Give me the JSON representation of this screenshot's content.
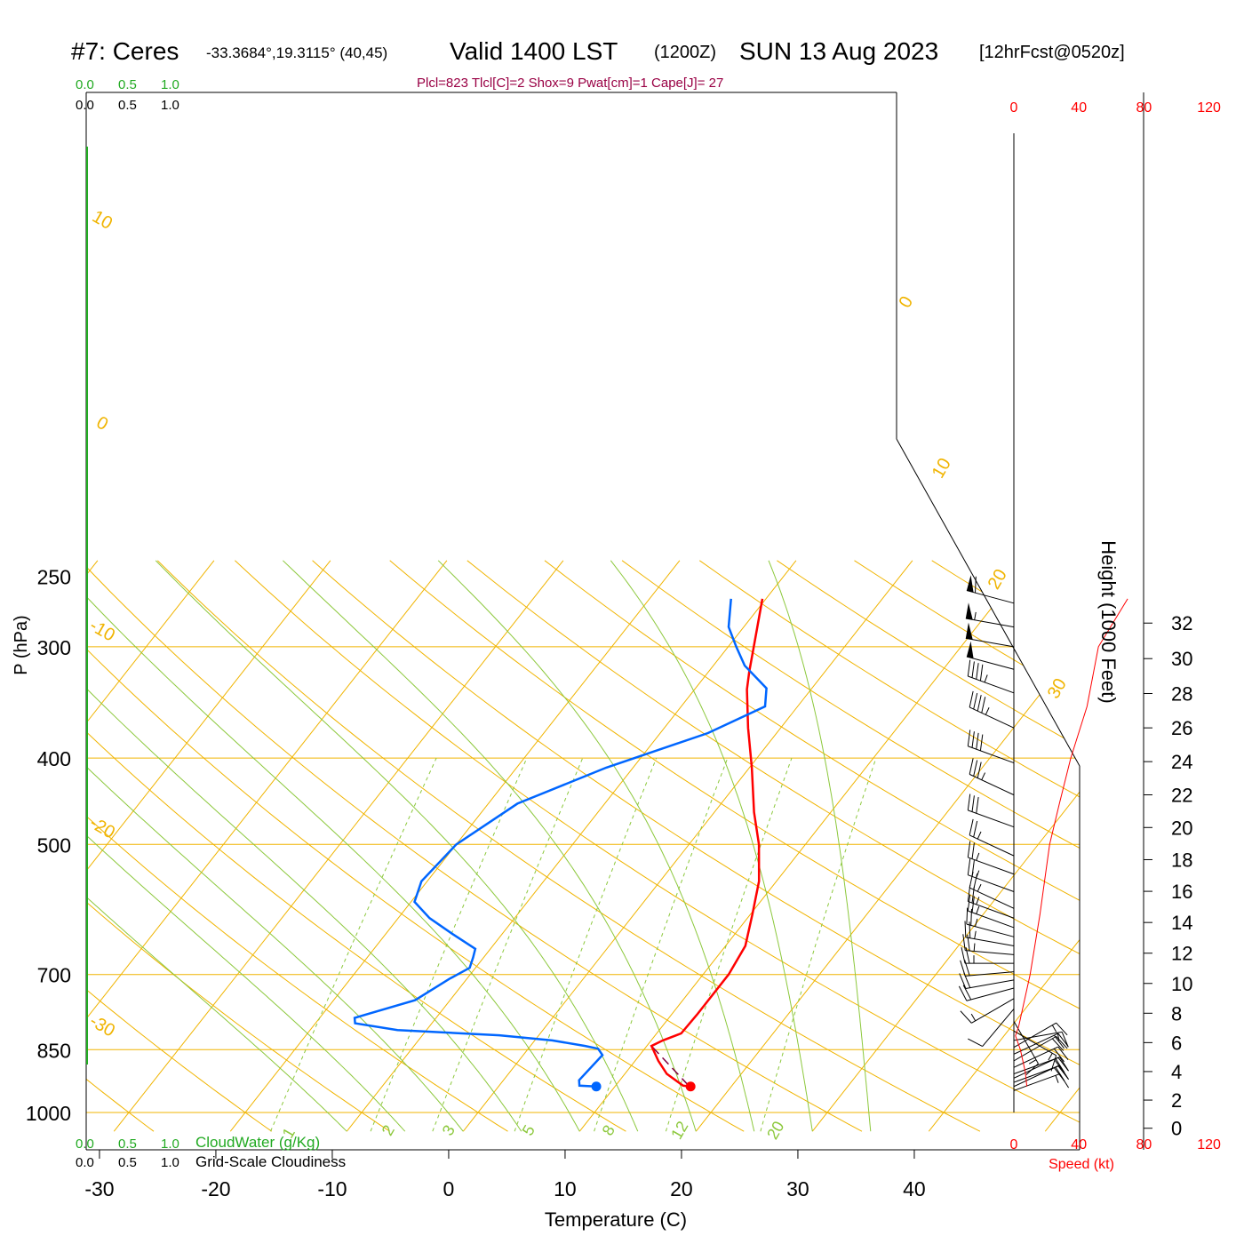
{
  "header": {
    "station": "#7: Ceres",
    "coords": "-33.3684°,19.3115° (40,45)",
    "valid": "Valid 1400 LST",
    "zulu": "(1200Z)",
    "date": "SUN 13 Aug 2023",
    "forecast": "[12hrFcst@0520z]",
    "indices": "Plcl=823 Tlcl[C]=2 Shox=9 Pwat[cm]=1 Cape[J]= 27"
  },
  "colors": {
    "temperature": "#ff0000",
    "dewpoint": "#0066ff",
    "isotherm": "#f0b400",
    "dry_adiabat": "#f0b400",
    "moist_adiabat": "#8cc83c",
    "mixing_ratio": "#8cc83c",
    "parcel": "#800040",
    "cloud_scale": "#22aa22",
    "speed": "#ff0000",
    "indices": "#990044"
  },
  "chart_data": {
    "type": "line",
    "title": "#7: Ceres Valid 1400 LST (1200Z) SUN 13 Aug 2023 [12hrFcst@0520z]",
    "xlabel": "Temperature (C)",
    "ylabel": "P (hPa)",
    "y2label": "Height (1000 Feet)",
    "xlim": [
      -30,
      40
    ],
    "ylim": [
      1000,
      250
    ],
    "x_ticks": [
      "-30",
      "-20",
      "-10",
      "0",
      "10",
      "20",
      "30",
      "40"
    ],
    "y_ticks": [
      "250",
      "300",
      "400",
      "500",
      "700",
      "850",
      "1000"
    ],
    "height_ticks": [
      "0",
      "2",
      "4",
      "6",
      "8",
      "10",
      "12",
      "14",
      "16",
      "18",
      "20",
      "22",
      "24",
      "26",
      "28",
      "30",
      "32"
    ],
    "cloud_labels": {
      "cloudwater_values": [
        "0.0",
        "0.5",
        "1.0"
      ],
      "cloudiness_values": [
        "0.0",
        "0.5",
        "1.0"
      ],
      "cloudwater_title": "CloudWater (g/Kg)",
      "cloudiness_title": "Grid-Scale Cloudiness"
    },
    "speed_axis": {
      "label": "Speed (kt)",
      "ticks": [
        "0",
        "40",
        "80",
        "120"
      ]
    },
    "isotherm_labels": [
      "10",
      "0",
      "-10",
      "-20",
      "-30",
      "0",
      "10",
      "20",
      "30"
    ],
    "mixing_ratio_labels": [
      "1",
      "2",
      "3",
      "5",
      "8",
      "12",
      "20"
    ],
    "series": [
      {
        "name": "Temperature",
        "points": [
          [
            16.5,
            935
          ],
          [
            15.8,
            933
          ],
          [
            13.6,
            905
          ],
          [
            12,
            875
          ],
          [
            10.4,
            842
          ],
          [
            11,
            830
          ],
          [
            12.1,
            815
          ],
          [
            12.2,
            775
          ],
          [
            12.2,
            700
          ],
          [
            11.7,
            650
          ],
          [
            10.2,
            600
          ],
          [
            8.5,
            550
          ],
          [
            6,
            500
          ],
          [
            3.4,
            460
          ],
          [
            0.2,
            410
          ],
          [
            -2.8,
            370
          ],
          [
            -5.5,
            335
          ],
          [
            -6.5,
            320
          ],
          [
            -7.8,
            300
          ],
          [
            -10.3,
            265
          ]
        ]
      },
      {
        "name": "Dewpoint",
        "points": [
          [
            8.4,
            935
          ],
          [
            6.9,
            933
          ],
          [
            6.5,
            920
          ],
          [
            6.8,
            862
          ],
          [
            6,
            848
          ],
          [
            4.7,
            842
          ],
          [
            1.5,
            830
          ],
          [
            -3.4,
            819
          ],
          [
            -12.5,
            808
          ],
          [
            -16.6,
            794
          ],
          [
            -17,
            783
          ],
          [
            -13,
            748
          ],
          [
            -11.5,
            708
          ],
          [
            -10.5,
            688
          ],
          [
            -10.9,
            670
          ],
          [
            -11.3,
            655
          ],
          [
            -14.3,
            630
          ],
          [
            -17.3,
            605
          ],
          [
            -19.7,
            580
          ],
          [
            -20.5,
            550
          ],
          [
            -20,
            500
          ],
          [
            -17.5,
            450
          ],
          [
            -12.3,
            410
          ],
          [
            -5.9,
            375
          ],
          [
            -2.8,
            350
          ],
          [
            -3.9,
            334
          ],
          [
            -7.3,
            315
          ],
          [
            -9.3,
            300
          ],
          [
            -11.3,
            285
          ],
          [
            -13,
            265
          ]
        ]
      },
      {
        "name": "Parcel",
        "points": [
          [
            10.6,
            845
          ],
          [
            16.4,
            935
          ]
        ]
      }
    ],
    "winds": [
      {
        "p": 268,
        "dir": 285,
        "spd": 60
      },
      {
        "p": 285,
        "dir": 280,
        "spd": 55
      },
      {
        "p": 300,
        "dir": 280,
        "spd": 50
      },
      {
        "p": 318,
        "dir": 285,
        "spd": 50
      },
      {
        "p": 338,
        "dir": 290,
        "spd": 45
      },
      {
        "p": 370,
        "dir": 295,
        "spd": 45
      },
      {
        "p": 405,
        "dir": 290,
        "spd": 40
      },
      {
        "p": 440,
        "dir": 295,
        "spd": 35
      },
      {
        "p": 478,
        "dir": 290,
        "spd": 30
      },
      {
        "p": 515,
        "dir": 295,
        "spd": 25
      },
      {
        "p": 540,
        "dir": 290,
        "spd": 25
      },
      {
        "p": 565,
        "dir": 290,
        "spd": 25
      },
      {
        "p": 590,
        "dir": 295,
        "spd": 25
      },
      {
        "p": 605,
        "dir": 290,
        "spd": 25
      },
      {
        "p": 620,
        "dir": 290,
        "spd": 25
      },
      {
        "p": 635,
        "dir": 285,
        "spd": 25
      },
      {
        "p": 650,
        "dir": 280,
        "spd": 25
      },
      {
        "p": 665,
        "dir": 275,
        "spd": 25
      },
      {
        "p": 680,
        "dir": 270,
        "spd": 25
      },
      {
        "p": 695,
        "dir": 265,
        "spd": 20
      },
      {
        "p": 710,
        "dir": 260,
        "spd": 20
      },
      {
        "p": 725,
        "dir": 255,
        "spd": 20
      },
      {
        "p": 745,
        "dir": 240,
        "spd": 15
      },
      {
        "p": 765,
        "dir": 220,
        "spd": 10
      },
      {
        "p": 790,
        "dir": 150,
        "spd": 15
      },
      {
        "p": 810,
        "dir": 120,
        "spd": 15
      },
      {
        "p": 830,
        "dir": 80,
        "spd": 15
      },
      {
        "p": 845,
        "dir": 60,
        "spd": 15
      },
      {
        "p": 860,
        "dir": 65,
        "spd": 20
      },
      {
        "p": 875,
        "dir": 60,
        "spd": 20
      },
      {
        "p": 890,
        "dir": 65,
        "spd": 20
      },
      {
        "p": 905,
        "dir": 70,
        "spd": 20
      },
      {
        "p": 915,
        "dir": 65,
        "spd": 20
      },
      {
        "p": 925,
        "dir": 70,
        "spd": 20
      },
      {
        "p": 935,
        "dir": 65,
        "spd": 20
      },
      {
        "p": 945,
        "dir": 70,
        "spd": 15
      }
    ],
    "speed_profile": [
      [
        8,
        935
      ],
      [
        7,
        900
      ],
      [
        4,
        850
      ],
      [
        1,
        820
      ],
      [
        3,
        800
      ],
      [
        10,
        700
      ],
      [
        16,
        600
      ],
      [
        22,
        500
      ],
      [
        28,
        450
      ],
      [
        35,
        400
      ],
      [
        45,
        350
      ],
      [
        52,
        300
      ],
      [
        70,
        265
      ]
    ]
  }
}
